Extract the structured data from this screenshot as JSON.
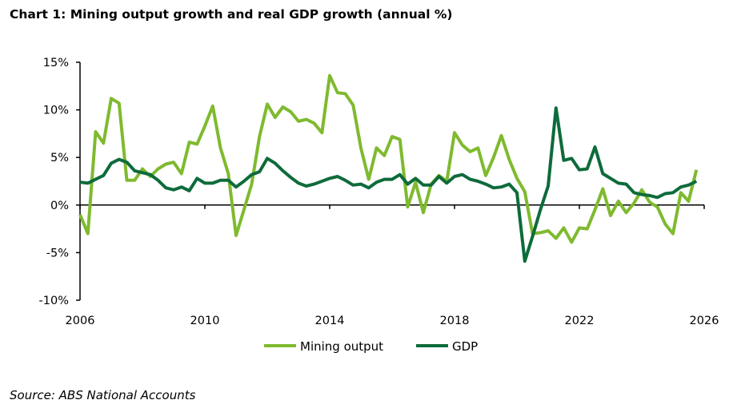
{
  "chart_data": {
    "type": "line",
    "title": "Chart 1: Mining output growth and real GDP growth (annual %)",
    "source": "Source: ABS National Accounts",
    "xlabel": "",
    "ylabel": "",
    "xlim": [
      2006,
      2026
    ],
    "ylim": [
      -10,
      15
    ],
    "x_ticks": [
      "2006",
      "2010",
      "2014",
      "2018",
      "2022",
      "2026"
    ],
    "y_ticks": [
      "-10%",
      "-5%",
      "0%",
      "5%",
      "10%",
      "15%"
    ],
    "y_tick_values": [
      -10,
      -5,
      0,
      5,
      10,
      15
    ],
    "x_tick_values": [
      2006,
      2010,
      2014,
      2018,
      2022,
      2026
    ],
    "grid": false,
    "legend_position": "bottom",
    "x": [
      2006.0,
      2006.25,
      2006.5,
      2006.75,
      2007.0,
      2007.25,
      2007.5,
      2007.75,
      2008.0,
      2008.25,
      2008.5,
      2008.75,
      2009.0,
      2009.25,
      2009.5,
      2009.75,
      2010.0,
      2010.25,
      2010.5,
      2010.75,
      2011.0,
      2011.25,
      2011.5,
      2011.75,
      2012.0,
      2012.25,
      2012.5,
      2012.75,
      2013.0,
      2013.25,
      2013.5,
      2013.75,
      2014.0,
      2014.25,
      2014.5,
      2014.75,
      2015.0,
      2015.25,
      2015.5,
      2015.75,
      2016.0,
      2016.25,
      2016.5,
      2016.75,
      2017.0,
      2017.25,
      2017.5,
      2017.75,
      2018.0,
      2018.25,
      2018.5,
      2018.75,
      2019.0,
      2019.25,
      2019.5,
      2019.75,
      2020.0,
      2020.25,
      2020.5,
      2020.75,
      2021.0,
      2021.25,
      2021.5,
      2021.75,
      2022.0,
      2022.25,
      2022.5,
      2022.75,
      2023.0,
      2023.25,
      2023.5,
      2023.75,
      2024.0,
      2024.25,
      2024.5,
      2024.75,
      2025.0,
      2025.25,
      2025.5,
      2025.75
    ],
    "series": [
      {
        "name": "Mining output",
        "color": "#7fba2f",
        "values": [
          -1.0,
          -3.0,
          7.7,
          6.5,
          11.2,
          10.7,
          2.6,
          2.6,
          3.8,
          3.0,
          3.8,
          4.3,
          4.5,
          3.3,
          6.6,
          6.4,
          8.3,
          10.4,
          6.0,
          3.3,
          -3.2,
          -0.5,
          2.2,
          7.2,
          10.6,
          9.2,
          10.3,
          9.8,
          8.8,
          9.0,
          8.6,
          7.6,
          13.6,
          11.8,
          11.7,
          10.5,
          6.0,
          2.7,
          6.0,
          5.2,
          7.2,
          6.9,
          -0.2,
          2.4,
          -0.8,
          2.2,
          3.1,
          2.5,
          7.6,
          6.3,
          5.6,
          6.0,
          3.1,
          5.0,
          7.3,
          4.8,
          2.8,
          1.4,
          -3.0,
          -2.9,
          -2.7,
          -3.5,
          -2.4,
          -3.9,
          -2.4,
          -2.5,
          -0.5,
          1.7,
          -1.1,
          0.4,
          -0.8,
          0.2,
          1.6,
          0.3,
          -0.2,
          -2.0,
          -3.0,
          1.3,
          0.4,
          3.7
        ]
      },
      {
        "name": "GDP",
        "color": "#0e6b3b",
        "values": [
          2.4,
          2.3,
          2.7,
          3.1,
          4.4,
          4.8,
          4.5,
          3.6,
          3.4,
          3.2,
          2.6,
          1.8,
          1.6,
          1.9,
          1.5,
          2.8,
          2.3,
          2.3,
          2.6,
          2.6,
          1.9,
          2.5,
          3.2,
          3.5,
          4.9,
          4.4,
          3.6,
          2.9,
          2.3,
          2.0,
          2.2,
          2.5,
          2.8,
          3.0,
          2.6,
          2.1,
          2.2,
          1.8,
          2.4,
          2.7,
          2.7,
          3.2,
          2.2,
          2.8,
          2.1,
          2.1,
          3.0,
          2.3,
          3.0,
          3.2,
          2.7,
          2.5,
          2.2,
          1.8,
          1.9,
          2.2,
          1.3,
          -5.9,
          -3.3,
          -0.5,
          2.0,
          10.2,
          4.7,
          4.9,
          3.7,
          3.8,
          6.1,
          3.3,
          2.8,
          2.3,
          2.2,
          1.3,
          1.1,
          1.0,
          0.8,
          1.2,
          1.3,
          1.9,
          2.1,
          2.5
        ]
      }
    ]
  }
}
